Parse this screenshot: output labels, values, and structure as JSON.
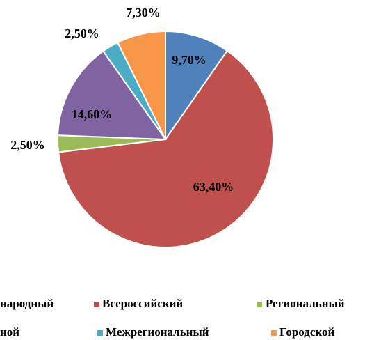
{
  "chart_data": {
    "type": "pie",
    "categories": [
      "народный",
      "Всероссийский",
      "Региональный",
      "ной",
      "Межрегиональный",
      "Городской"
    ],
    "values": [
      9.7,
      63.4,
      2.5,
      14.6,
      2.5,
      7.3
    ],
    "value_labels": [
      "9,70%",
      "63,40%",
      "2,50%",
      "14,60%",
      "2,50%",
      "7,30%"
    ],
    "colors": [
      "#4f81bd",
      "#c0504d",
      "#9bbb59",
      "#8064a2",
      "#4bacc6",
      "#f79646"
    ],
    "legend": "bottom"
  }
}
